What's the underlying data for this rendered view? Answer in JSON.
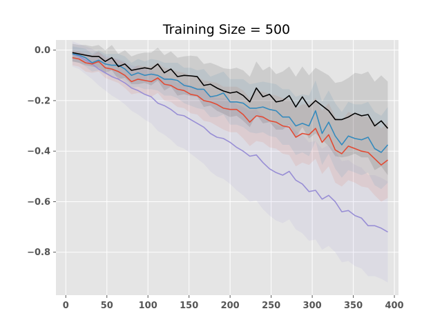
{
  "chart_data": {
    "type": "line",
    "title": "Training Size = 500",
    "xlabel": "",
    "ylabel": "",
    "xlim": [
      -12,
      405
    ],
    "ylim": [
      -0.97,
      0.04
    ],
    "xticks": [
      0,
      50,
      100,
      150,
      200,
      250,
      300,
      350,
      400
    ],
    "xtick_labels": [
      "0",
      "50",
      "100",
      "150",
      "200",
      "250",
      "300",
      "350",
      "400"
    ],
    "yticks": [
      0.0,
      -0.2,
      -0.4,
      -0.6,
      -0.8
    ],
    "ytick_labels": [
      "0.0",
      "−0.2",
      "−0.4",
      "−0.6",
      "−0.8"
    ],
    "grid": true,
    "style": "ggplot",
    "x": [
      8,
      16,
      24,
      32,
      40,
      48,
      56,
      64,
      72,
      80,
      88,
      96,
      104,
      112,
      120,
      128,
      136,
      144,
      152,
      160,
      168,
      176,
      184,
      192,
      200,
      208,
      216,
      224,
      232,
      240,
      248,
      256,
      264,
      272,
      280,
      288,
      296,
      304,
      312,
      320,
      328,
      336,
      344,
      352,
      360,
      368,
      376,
      384,
      392
    ],
    "series": [
      {
        "color": "#000000",
        "values": [
          -0.01,
          -0.015,
          -0.02,
          -0.025,
          -0.025,
          -0.045,
          -0.03,
          -0.065,
          -0.055,
          -0.08,
          -0.075,
          -0.07,
          -0.075,
          -0.055,
          -0.09,
          -0.075,
          -0.105,
          -0.1,
          -0.102,
          -0.105,
          -0.14,
          -0.135,
          -0.15,
          -0.162,
          -0.17,
          -0.165,
          -0.18,
          -0.205,
          -0.15,
          -0.185,
          -0.175,
          -0.205,
          -0.2,
          -0.18,
          -0.225,
          -0.185,
          -0.225,
          -0.2,
          -0.22,
          -0.24,
          -0.275,
          -0.275,
          -0.265,
          -0.25,
          -0.26,
          -0.255,
          -0.3,
          -0.28,
          -0.31
        ],
        "band": [
          0.035,
          0.035,
          0.04,
          0.04,
          0.045,
          0.045,
          0.05,
          0.05,
          0.055,
          0.055,
          0.06,
          0.06,
          0.065,
          0.065,
          0.07,
          0.07,
          0.075,
          0.075,
          0.08,
          0.08,
          0.085,
          0.085,
          0.09,
          0.09,
          0.095,
          0.095,
          0.1,
          0.1,
          0.105,
          0.105,
          0.11,
          0.11,
          0.115,
          0.115,
          0.12,
          0.12,
          0.125,
          0.13,
          0.135,
          0.14,
          0.145,
          0.15,
          0.155,
          0.16,
          0.165,
          0.17,
          0.175,
          0.18,
          0.185
        ]
      },
      {
        "color": "#348ABD",
        "values": [
          -0.015,
          -0.02,
          -0.03,
          -0.05,
          -0.04,
          -0.055,
          -0.06,
          -0.06,
          -0.075,
          -0.1,
          -0.09,
          -0.1,
          -0.095,
          -0.1,
          -0.115,
          -0.115,
          -0.12,
          -0.14,
          -0.145,
          -0.155,
          -0.155,
          -0.185,
          -0.18,
          -0.17,
          -0.205,
          -0.205,
          -0.21,
          -0.23,
          -0.23,
          -0.225,
          -0.235,
          -0.24,
          -0.265,
          -0.265,
          -0.3,
          -0.29,
          -0.3,
          -0.24,
          -0.33,
          -0.285,
          -0.34,
          -0.375,
          -0.34,
          -0.35,
          -0.355,
          -0.345,
          -0.39,
          -0.405,
          -0.375
        ],
        "band": [
          0.03,
          0.03,
          0.035,
          0.035,
          0.04,
          0.04,
          0.045,
          0.045,
          0.05,
          0.05,
          0.055,
          0.055,
          0.06,
          0.06,
          0.065,
          0.065,
          0.07,
          0.07,
          0.075,
          0.075,
          0.08,
          0.08,
          0.085,
          0.085,
          0.09,
          0.09,
          0.095,
          0.095,
          0.1,
          0.1,
          0.105,
          0.105,
          0.11,
          0.11,
          0.115,
          0.115,
          0.12,
          0.12,
          0.125,
          0.125,
          0.13,
          0.13,
          0.135,
          0.135,
          0.14,
          0.14,
          0.145,
          0.145,
          0.15
        ]
      },
      {
        "color": "#E24A33",
        "values": [
          -0.03,
          -0.035,
          -0.05,
          -0.055,
          -0.045,
          -0.07,
          -0.075,
          -0.085,
          -0.1,
          -0.125,
          -0.115,
          -0.12,
          -0.125,
          -0.11,
          -0.135,
          -0.14,
          -0.155,
          -0.16,
          -0.175,
          -0.18,
          -0.2,
          -0.205,
          -0.215,
          -0.23,
          -0.235,
          -0.235,
          -0.255,
          -0.285,
          -0.26,
          -0.265,
          -0.28,
          -0.285,
          -0.3,
          -0.305,
          -0.345,
          -0.33,
          -0.335,
          -0.31,
          -0.365,
          -0.335,
          -0.395,
          -0.41,
          -0.38,
          -0.39,
          -0.4,
          -0.405,
          -0.43,
          -0.455,
          -0.435
        ],
        "band": [
          0.03,
          0.03,
          0.035,
          0.035,
          0.04,
          0.04,
          0.045,
          0.045,
          0.05,
          0.05,
          0.055,
          0.055,
          0.06,
          0.06,
          0.065,
          0.065,
          0.07,
          0.07,
          0.075,
          0.075,
          0.08,
          0.08,
          0.085,
          0.085,
          0.09,
          0.09,
          0.095,
          0.095,
          0.1,
          0.1,
          0.105,
          0.105,
          0.11,
          0.11,
          0.115,
          0.115,
          0.12,
          0.12,
          0.125,
          0.125,
          0.13,
          0.13,
          0.135,
          0.135,
          0.14,
          0.14,
          0.145,
          0.145,
          0.15
        ]
      },
      {
        "color": "#988ED5",
        "values": [
          -0.015,
          -0.025,
          -0.04,
          -0.055,
          -0.075,
          -0.09,
          -0.105,
          -0.115,
          -0.13,
          -0.15,
          -0.16,
          -0.175,
          -0.185,
          -0.21,
          -0.22,
          -0.235,
          -0.255,
          -0.26,
          -0.275,
          -0.29,
          -0.305,
          -0.33,
          -0.345,
          -0.35,
          -0.365,
          -0.385,
          -0.4,
          -0.42,
          -0.415,
          -0.445,
          -0.47,
          -0.485,
          -0.495,
          -0.48,
          -0.515,
          -0.53,
          -0.56,
          -0.555,
          -0.59,
          -0.575,
          -0.6,
          -0.64,
          -0.635,
          -0.655,
          -0.665,
          -0.695,
          -0.695,
          -0.705,
          -0.72
        ],
        "band": [
          0.05,
          0.05,
          0.055,
          0.06,
          0.065,
          0.07,
          0.075,
          0.08,
          0.085,
          0.09,
          0.095,
          0.1,
          0.105,
          0.11,
          0.115,
          0.12,
          0.125,
          0.13,
          0.135,
          0.14,
          0.145,
          0.15,
          0.155,
          0.16,
          0.165,
          0.17,
          0.175,
          0.18,
          0.18,
          0.185,
          0.185,
          0.19,
          0.19,
          0.19,
          0.195,
          0.195,
          0.195,
          0.195,
          0.2,
          0.2,
          0.2,
          0.2,
          0.2,
          0.2,
          0.2,
          0.2,
          0.2,
          0.2,
          0.2
        ]
      }
    ]
  }
}
